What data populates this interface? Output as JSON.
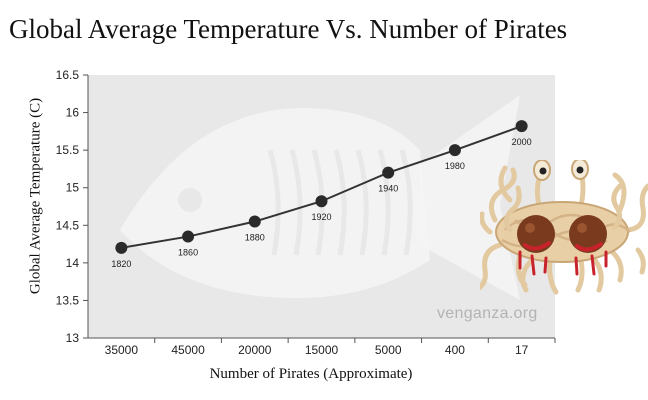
{
  "chart_data": {
    "type": "line",
    "title": "Global Average Temperature Vs. Number of Pirates",
    "xlabel": "Number of Pirates (Approximate)",
    "ylabel": "Global Average Temperature (C)",
    "categories": [
      "35000",
      "45000",
      "20000",
      "15000",
      "5000",
      "400",
      "17"
    ],
    "point_labels": [
      "1820",
      "1860",
      "1880",
      "1920",
      "1940",
      "1980",
      "2000"
    ],
    "values": [
      14.2,
      14.35,
      14.55,
      14.82,
      15.2,
      15.5,
      15.82
    ],
    "ylim": [
      13,
      16.5
    ],
    "yticks": [
      "13",
      "13.5",
      "14",
      "14.5",
      "15",
      "15.5",
      "16",
      "16.5"
    ],
    "grid": false,
    "legend": "none"
  },
  "watermark": "venganza.org",
  "colors": {
    "plot_bg": "#e8e8e8",
    "line": "#333333",
    "marker": "#2a2a2a",
    "watermark_fish": "#f4f4f4"
  },
  "decorations": {
    "background_watermark": "pirate-fish-skeleton",
    "side_illustration": "flying-spaghetti-monster"
  }
}
